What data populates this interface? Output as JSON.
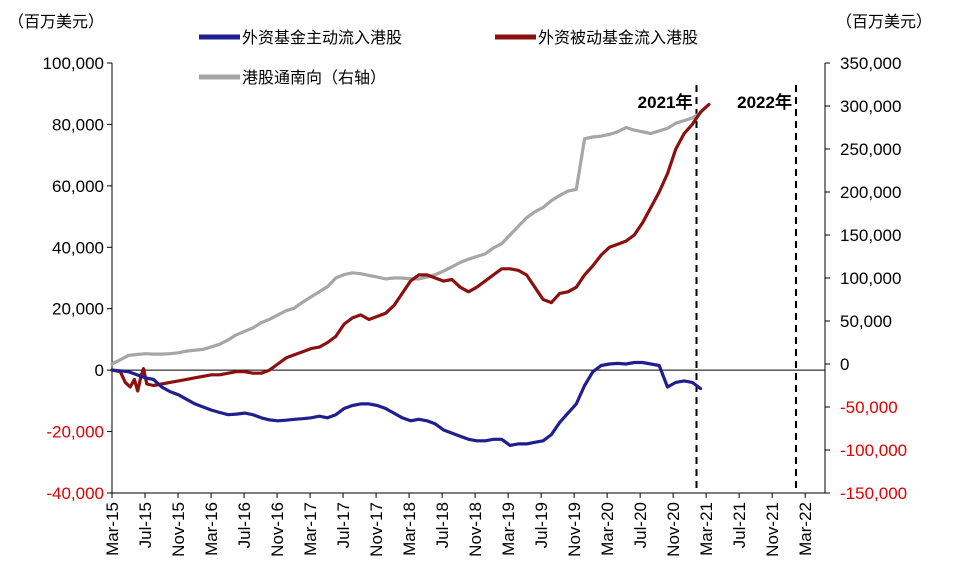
{
  "chart_data": {
    "type": "line",
    "left_unit": "（百万美元）",
    "right_unit": "（百万美元）",
    "left_axis": {
      "ylim": [
        -40000,
        100000
      ],
      "ticks": [
        100000,
        80000,
        60000,
        40000,
        20000,
        0,
        -20000,
        -40000
      ],
      "tick_labels": [
        "100,000",
        "80,000",
        "60,000",
        "40,000",
        "20,000",
        "0",
        "-20,000",
        "-40,000"
      ]
    },
    "right_axis": {
      "ylim": [
        -150000,
        350000
      ],
      "ticks": [
        350000,
        300000,
        250000,
        200000,
        150000,
        100000,
        50000,
        0,
        -50000,
        -100000,
        -150000
      ],
      "tick_labels": [
        "350,000",
        "300,000",
        "250,000",
        "200,000",
        "150,000",
        "100,000",
        "50,000",
        "0",
        "-50,000",
        "-100,000",
        "-150,000"
      ]
    },
    "negative_tick_color": "#e00000",
    "x_tick_labels": [
      "Mar-15",
      "Jul-15",
      "Nov-15",
      "Mar-16",
      "Jul-16",
      "Nov-16",
      "Mar-17",
      "Jul-17",
      "Nov-17",
      "Mar-18",
      "Jul-18",
      "Nov-18",
      "Mar-19",
      "Jul-19",
      "Nov-19",
      "Mar-20",
      "Jul-20",
      "Nov-20",
      "Mar-21",
      "Jul-21",
      "Nov-21",
      "Mar-22"
    ],
    "x_month_range": [
      0,
      86
    ],
    "legend": [
      {
        "key": "active",
        "label": "外资基金主动流入港股",
        "color": "#1f1f8f"
      },
      {
        "key": "passive",
        "label": "外资被动基金流入港股",
        "color": "#8b1010"
      },
      {
        "key": "southbound",
        "label": "港股通南向（右轴）",
        "color": "#a6a6a6"
      }
    ],
    "annotations": [
      {
        "label": "2021年",
        "month": 70.5
      },
      {
        "label": "2022年",
        "month": 82.5
      }
    ],
    "series": [
      {
        "name": "外资基金主动流入港股",
        "axis": "left",
        "color": "#1f1f8f",
        "points": [
          [
            0,
            0
          ],
          [
            1,
            -200
          ],
          [
            2,
            -500
          ],
          [
            3,
            -1500
          ],
          [
            4,
            -2500
          ],
          [
            5,
            -3000
          ],
          [
            6,
            -5500
          ],
          [
            7,
            -7000
          ],
          [
            8,
            -8000
          ],
          [
            9,
            -9500
          ],
          [
            10,
            -11000
          ],
          [
            11,
            -12000
          ],
          [
            12,
            -13000
          ],
          [
            13,
            -13800
          ],
          [
            14,
            -14500
          ],
          [
            15,
            -14300
          ],
          [
            16,
            -14000
          ],
          [
            17,
            -14500
          ],
          [
            18,
            -15500
          ],
          [
            19,
            -16200
          ],
          [
            20,
            -16500
          ],
          [
            21,
            -16300
          ],
          [
            22,
            -16000
          ],
          [
            23,
            -15800
          ],
          [
            24,
            -15500
          ],
          [
            25,
            -15000
          ],
          [
            26,
            -15500
          ],
          [
            27,
            -14500
          ],
          [
            28,
            -12500
          ],
          [
            29,
            -11500
          ],
          [
            30,
            -11000
          ],
          [
            31,
            -11000
          ],
          [
            32,
            -11500
          ],
          [
            33,
            -12500
          ],
          [
            34,
            -14000
          ],
          [
            35,
            -15500
          ],
          [
            36,
            -16500
          ],
          [
            37,
            -16000
          ],
          [
            38,
            -16500
          ],
          [
            39,
            -17500
          ],
          [
            40,
            -19500
          ],
          [
            41,
            -20500
          ],
          [
            42,
            -21500
          ],
          [
            43,
            -22500
          ],
          [
            44,
            -23000
          ],
          [
            45,
            -23000
          ],
          [
            46,
            -22500
          ],
          [
            47,
            -22500
          ],
          [
            48,
            -24500
          ],
          [
            49,
            -24000
          ],
          [
            50,
            -24000
          ],
          [
            51,
            -23500
          ],
          [
            52,
            -23000
          ],
          [
            53,
            -21000
          ],
          [
            54,
            -17000
          ],
          [
            55,
            -14000
          ],
          [
            56,
            -11000
          ],
          [
            57,
            -5000
          ],
          [
            58,
            -500
          ],
          [
            59,
            1500
          ],
          [
            60,
            2000
          ],
          [
            61,
            2200
          ],
          [
            62,
            2000
          ],
          [
            63,
            2500
          ],
          [
            64,
            2500
          ],
          [
            65,
            2000
          ],
          [
            66,
            1500
          ],
          [
            67,
            -5500
          ],
          [
            68,
            -4000
          ],
          [
            69,
            -3500
          ],
          [
            70,
            -4000
          ],
          [
            71,
            -6000
          ]
        ]
      },
      {
        "name": "外资被动基金流入港股",
        "axis": "left",
        "color": "#8b1010",
        "points": [
          [
            0,
            0
          ],
          [
            1,
            -500
          ],
          [
            1.6,
            -4000
          ],
          [
            2.2,
            -5500
          ],
          [
            2.7,
            -3000
          ],
          [
            3.1,
            -6800
          ],
          [
            3.5,
            -2000
          ],
          [
            3.8,
            500
          ],
          [
            4.2,
            -4500
          ],
          [
            5,
            -5000
          ],
          [
            6,
            -4500
          ],
          [
            7,
            -4000
          ],
          [
            8,
            -3500
          ],
          [
            9,
            -3000
          ],
          [
            10,
            -2500
          ],
          [
            11,
            -2000
          ],
          [
            12,
            -1500
          ],
          [
            13,
            -1500
          ],
          [
            14,
            -1000
          ],
          [
            15,
            -500
          ],
          [
            16,
            -500
          ],
          [
            17,
            -1000
          ],
          [
            18,
            -1000
          ],
          [
            19,
            0
          ],
          [
            20,
            2000
          ],
          [
            21,
            4000
          ],
          [
            22,
            5000
          ],
          [
            23,
            6000
          ],
          [
            24,
            7000
          ],
          [
            25,
            7500
          ],
          [
            26,
            9000
          ],
          [
            27,
            11000
          ],
          [
            28,
            15000
          ],
          [
            29,
            17000
          ],
          [
            30,
            18000
          ],
          [
            31,
            16500
          ],
          [
            32,
            17500
          ],
          [
            33,
            18500
          ],
          [
            34,
            21000
          ],
          [
            35,
            25000
          ],
          [
            36,
            29000
          ],
          [
            37,
            31000
          ],
          [
            38,
            31000
          ],
          [
            39,
            30000
          ],
          [
            40,
            29000
          ],
          [
            41,
            29500
          ],
          [
            42,
            27000
          ],
          [
            43,
            25500
          ],
          [
            44,
            27000
          ],
          [
            45,
            29000
          ],
          [
            46,
            31000
          ],
          [
            47,
            33000
          ],
          [
            48,
            33000
          ],
          [
            49,
            32500
          ],
          [
            50,
            31000
          ],
          [
            51,
            27000
          ],
          [
            52,
            23000
          ],
          [
            53,
            22000
          ],
          [
            54,
            25000
          ],
          [
            55,
            25500
          ],
          [
            56,
            27000
          ],
          [
            57,
            31000
          ],
          [
            58,
            34000
          ],
          [
            59,
            37500
          ],
          [
            60,
            40000
          ],
          [
            61,
            41000
          ],
          [
            62,
            42000
          ],
          [
            63,
            44000
          ],
          [
            64,
            48000
          ],
          [
            65,
            53000
          ],
          [
            66,
            58000
          ],
          [
            67,
            64000
          ],
          [
            68,
            72000
          ],
          [
            69,
            77000
          ],
          [
            70,
            80000
          ],
          [
            71,
            84000
          ],
          [
            72,
            86500
          ]
        ]
      },
      {
        "name": "港股通南向（右轴）",
        "axis": "right",
        "color": "#a6a6a6",
        "points": [
          [
            0,
            0
          ],
          [
            1,
            5000
          ],
          [
            2,
            10000
          ],
          [
            3,
            11000
          ],
          [
            4,
            12000
          ],
          [
            5,
            11500
          ],
          [
            6,
            11500
          ],
          [
            7,
            12000
          ],
          [
            8,
            13000
          ],
          [
            9,
            15000
          ],
          [
            10,
            16000
          ],
          [
            11,
            17000
          ],
          [
            12,
            20000
          ],
          [
            13,
            23000
          ],
          [
            14,
            28000
          ],
          [
            15,
            34000
          ],
          [
            16,
            38000
          ],
          [
            17,
            42000
          ],
          [
            18,
            48000
          ],
          [
            19,
            52000
          ],
          [
            20,
            57000
          ],
          [
            21,
            62000
          ],
          [
            22,
            65000
          ],
          [
            23,
            72000
          ],
          [
            24,
            78000
          ],
          [
            25,
            84000
          ],
          [
            26,
            90000
          ],
          [
            27,
            100000
          ],
          [
            28,
            104000
          ],
          [
            29,
            106000
          ],
          [
            30,
            105000
          ],
          [
            31,
            103000
          ],
          [
            32,
            101000
          ],
          [
            33,
            99000
          ],
          [
            34,
            100000
          ],
          [
            35,
            100000
          ],
          [
            36,
            99000
          ],
          [
            37,
            99000
          ],
          [
            38,
            101000
          ],
          [
            39,
            104000
          ],
          [
            40,
            108000
          ],
          [
            41,
            113000
          ],
          [
            42,
            118000
          ],
          [
            43,
            122000
          ],
          [
            44,
            125000
          ],
          [
            45,
            128000
          ],
          [
            46,
            135000
          ],
          [
            47,
            140000
          ],
          [
            48,
            150000
          ],
          [
            49,
            160000
          ],
          [
            50,
            170000
          ],
          [
            51,
            177000
          ],
          [
            52,
            182000
          ],
          [
            53,
            190000
          ],
          [
            54,
            196000
          ],
          [
            55,
            201000
          ],
          [
            56,
            203000
          ],
          [
            57,
            262000
          ],
          [
            58,
            264000
          ],
          [
            59,
            265000
          ],
          [
            60,
            267000
          ],
          [
            61,
            270000
          ],
          [
            62,
            275000
          ],
          [
            63,
            272000
          ],
          [
            64,
            270000
          ],
          [
            65,
            268000
          ],
          [
            66,
            271000
          ],
          [
            67,
            274000
          ],
          [
            68,
            280000
          ],
          [
            69,
            283000
          ],
          [
            70,
            286000
          ],
          [
            71,
            292000
          ]
        ]
      }
    ]
  }
}
